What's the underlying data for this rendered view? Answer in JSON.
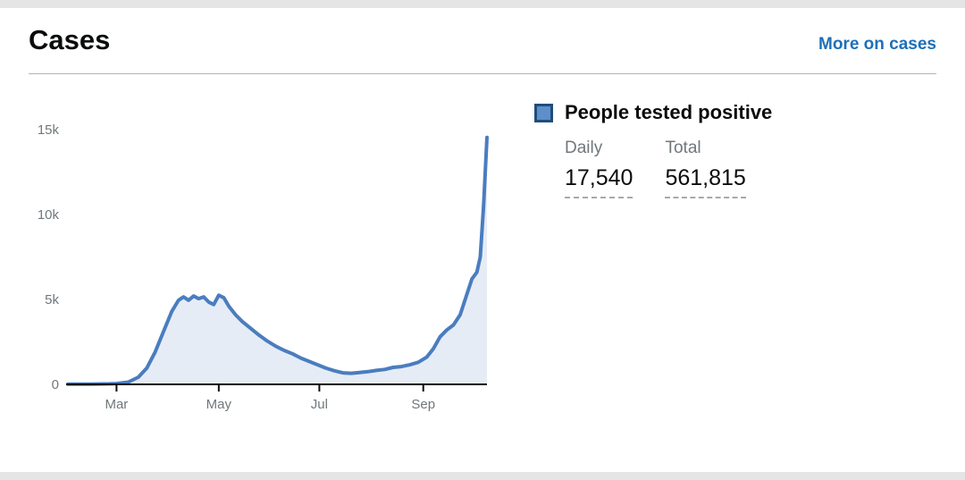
{
  "header": {
    "title": "Cases",
    "more_link": "More on cases"
  },
  "legend": {
    "label": "People tested positive",
    "daily_label": "Daily",
    "daily_value": "17,540",
    "total_label": "Total",
    "total_value": "561,815"
  },
  "colors": {
    "line": "#4a7dbf",
    "area": "rgba(116,152,204,0.18)",
    "legend_fill": "#5d8fcc",
    "legend_border": "#1f4e79",
    "link": "#1d70b8",
    "axis": "#0b0c0c",
    "tick_text": "#6f777b"
  },
  "chart_data": {
    "type": "area",
    "title": "People tested positive (daily, Feb–Oct 2020)",
    "xlabel": "",
    "ylabel": "",
    "ylim": [
      0,
      15000
    ],
    "grid": false,
    "legend_position": "right",
    "y_ticks": [
      {
        "v": 0,
        "label": "0"
      },
      {
        "v": 5000,
        "label": "5k"
      },
      {
        "v": 10000,
        "label": "10k"
      },
      {
        "v": 15000,
        "label": "15k"
      }
    ],
    "x_ticks": [
      {
        "f": 0.116,
        "label": "Mar"
      },
      {
        "f": 0.36,
        "label": "May"
      },
      {
        "f": 0.6,
        "label": "Jul"
      },
      {
        "f": 0.848,
        "label": "Sep"
      }
    ],
    "points": [
      {
        "f": 0.0,
        "v": 10
      },
      {
        "f": 0.056,
        "v": 15
      },
      {
        "f": 0.1,
        "v": 30
      },
      {
        "f": 0.116,
        "v": 45
      },
      {
        "f": 0.144,
        "v": 130
      },
      {
        "f": 0.168,
        "v": 420
      },
      {
        "f": 0.188,
        "v": 950
      },
      {
        "f": 0.208,
        "v": 1900
      },
      {
        "f": 0.228,
        "v": 3100
      },
      {
        "f": 0.248,
        "v": 4300
      },
      {
        "f": 0.264,
        "v": 4950
      },
      {
        "f": 0.276,
        "v": 5150
      },
      {
        "f": 0.288,
        "v": 4950
      },
      {
        "f": 0.3,
        "v": 5200
      },
      {
        "f": 0.312,
        "v": 5050
      },
      {
        "f": 0.324,
        "v": 5150
      },
      {
        "f": 0.336,
        "v": 4850
      },
      {
        "f": 0.348,
        "v": 4700
      },
      {
        "f": 0.36,
        "v": 5250
      },
      {
        "f": 0.372,
        "v": 5100
      },
      {
        "f": 0.384,
        "v": 4600
      },
      {
        "f": 0.4,
        "v": 4100
      },
      {
        "f": 0.416,
        "v": 3700
      },
      {
        "f": 0.436,
        "v": 3300
      },
      {
        "f": 0.456,
        "v": 2900
      },
      {
        "f": 0.476,
        "v": 2550
      },
      {
        "f": 0.496,
        "v": 2250
      },
      {
        "f": 0.516,
        "v": 2000
      },
      {
        "f": 0.536,
        "v": 1800
      },
      {
        "f": 0.556,
        "v": 1550
      },
      {
        "f": 0.576,
        "v": 1350
      },
      {
        "f": 0.596,
        "v": 1150
      },
      {
        "f": 0.616,
        "v": 950
      },
      {
        "f": 0.636,
        "v": 800
      },
      {
        "f": 0.656,
        "v": 680
      },
      {
        "f": 0.676,
        "v": 650
      },
      {
        "f": 0.696,
        "v": 700
      },
      {
        "f": 0.716,
        "v": 750
      },
      {
        "f": 0.736,
        "v": 820
      },
      {
        "f": 0.756,
        "v": 880
      },
      {
        "f": 0.776,
        "v": 1000
      },
      {
        "f": 0.796,
        "v": 1050
      },
      {
        "f": 0.816,
        "v": 1150
      },
      {
        "f": 0.836,
        "v": 1300
      },
      {
        "f": 0.856,
        "v": 1600
      },
      {
        "f": 0.872,
        "v": 2100
      },
      {
        "f": 0.888,
        "v": 2800
      },
      {
        "f": 0.904,
        "v": 3200
      },
      {
        "f": 0.92,
        "v": 3500
      },
      {
        "f": 0.936,
        "v": 4100
      },
      {
        "f": 0.952,
        "v": 5300
      },
      {
        "f": 0.964,
        "v": 6200
      },
      {
        "f": 0.976,
        "v": 6600
      },
      {
        "f": 0.984,
        "v": 7500
      },
      {
        "f": 0.992,
        "v": 10500
      },
      {
        "f": 1.0,
        "v": 14542
      }
    ]
  }
}
